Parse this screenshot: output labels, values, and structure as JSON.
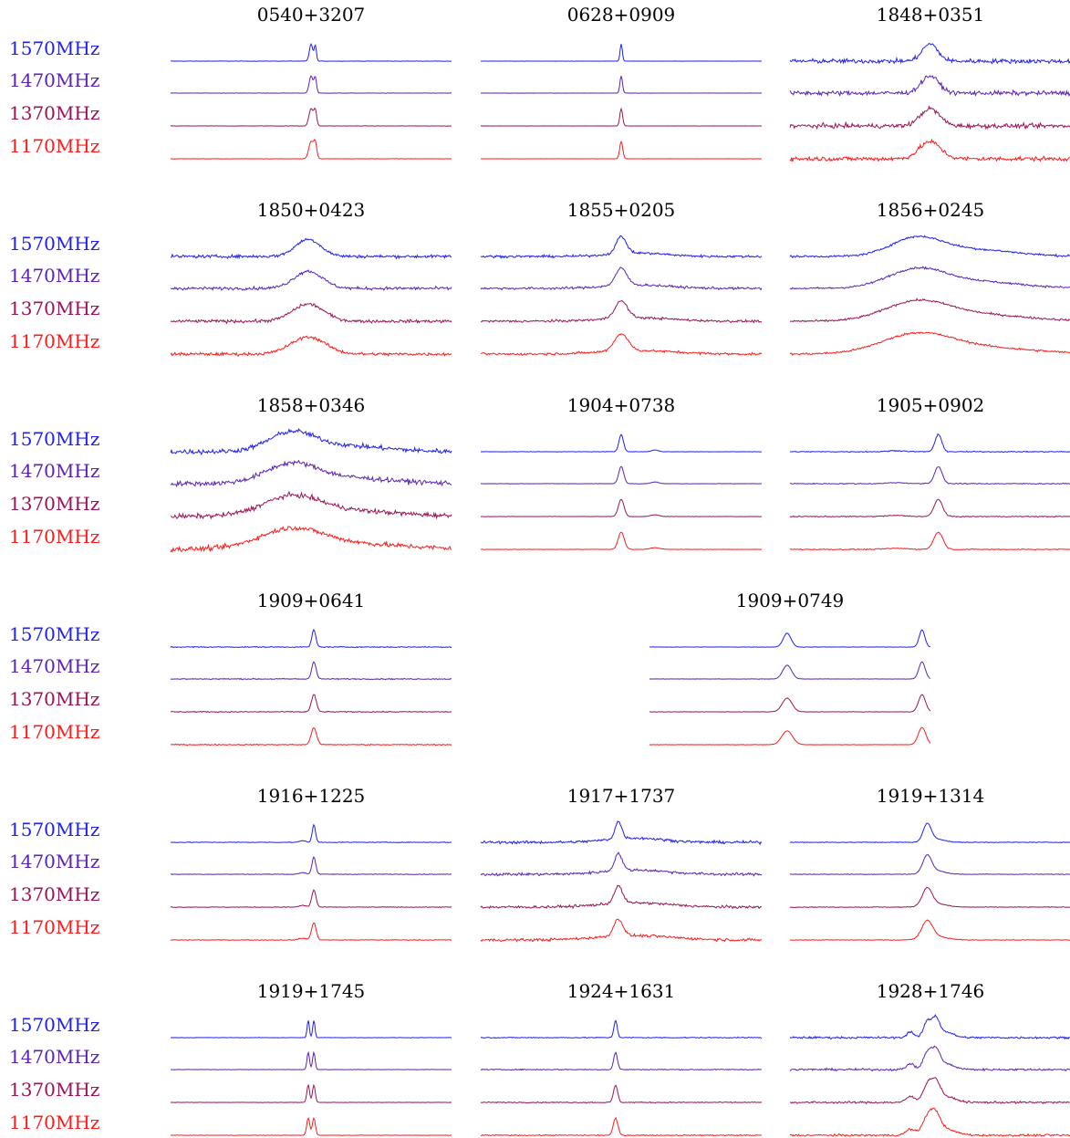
{
  "chart_data": {
    "type": "line",
    "description_units": "normalized pulse profile intensity vs pulse phase",
    "frequencies": [
      {
        "label": "1570MHz",
        "color": "#1f1ff0"
      },
      {
        "label": "1470MHz",
        "color": "#5a22b6"
      },
      {
        "label": "1370MHz",
        "color": "#9b1355"
      },
      {
        "label": "1170MHz",
        "color": "#ff1a1a"
      }
    ],
    "panels": [
      {
        "name": "0540+3207",
        "noise": 0.01,
        "components": [
          {
            "phase": 0.5,
            "width": 0.006,
            "amp": 1.0
          },
          {
            "phase": 0.515,
            "width": 0.004,
            "amp": 0.9
          }
        ]
      },
      {
        "name": "0628+0909",
        "noise": 0.005,
        "components": [
          {
            "phase": 0.5,
            "width": 0.004,
            "amp": 1.0
          }
        ]
      },
      {
        "name": "1848+0351",
        "noise": 0.13,
        "components": [
          {
            "phase": 0.5,
            "width": 0.028,
            "amp": 1.0
          }
        ]
      },
      {
        "name": "1850+0423",
        "noise": 0.09,
        "components": [
          {
            "phase": 0.49,
            "width": 0.045,
            "amp": 1.0
          }
        ]
      },
      {
        "name": "1855+0205",
        "noise": 0.07,
        "components": [
          {
            "phase": 0.5,
            "width": 0.018,
            "amp": 1.0
          },
          {
            "phase": 0.56,
            "width": 0.1,
            "amp": 0.2
          }
        ]
      },
      {
        "name": "1856+0245",
        "noise": 0.06,
        "components": [
          {
            "phase": 0.45,
            "width": 0.09,
            "amp": 1.0
          },
          {
            "phase": 0.65,
            "width": 0.15,
            "amp": 0.4
          }
        ]
      },
      {
        "name": "1858+0346",
        "noise": 0.14,
        "components": [
          {
            "phase": 0.43,
            "width": 0.08,
            "amp": 1.0
          },
          {
            "phase": 0.6,
            "width": 0.16,
            "amp": 0.35
          }
        ]
      },
      {
        "name": "1904+0738",
        "noise": 0.01,
        "components": [
          {
            "phase": 0.5,
            "width": 0.008,
            "amp": 1.0
          },
          {
            "phase": 0.62,
            "width": 0.012,
            "amp": 0.1
          }
        ]
      },
      {
        "name": "1905+0902",
        "noise": 0.03,
        "components": [
          {
            "phase": 0.53,
            "width": 0.012,
            "amp": 1.0
          },
          {
            "phase": 0.38,
            "width": 0.03,
            "amp": 0.06
          }
        ]
      },
      {
        "name": "1909+0641",
        "noise": 0.03,
        "components": [
          {
            "phase": 0.51,
            "width": 0.007,
            "amp": 1.0
          }
        ]
      },
      {
        "name": "1909+0749",
        "noise": 0.01,
        "components": [
          {
            "phase": 0.49,
            "width": 0.014,
            "amp": 0.8
          },
          {
            "phase": 0.97,
            "width": 0.01,
            "amp": 1.0
          }
        ]
      },
      {
        "name": "1916+1225",
        "noise": 0.02,
        "components": [
          {
            "phase": 0.51,
            "width": 0.006,
            "amp": 1.0
          },
          {
            "phase": 0.47,
            "width": 0.01,
            "amp": 0.1
          }
        ]
      },
      {
        "name": "1917+1737",
        "noise": 0.08,
        "components": [
          {
            "phase": 0.49,
            "width": 0.012,
            "amp": 1.0
          },
          {
            "phase": 0.55,
            "width": 0.1,
            "amp": 0.25
          }
        ]
      },
      {
        "name": "1919+1314",
        "noise": 0.02,
        "components": [
          {
            "phase": 0.49,
            "width": 0.014,
            "amp": 1.0
          },
          {
            "phase": 0.52,
            "width": 0.03,
            "amp": 0.2
          }
        ]
      },
      {
        "name": "1919+1745",
        "noise": 0.01,
        "components": [
          {
            "phase": 0.49,
            "width": 0.004,
            "amp": 1.0
          },
          {
            "phase": 0.51,
            "width": 0.004,
            "amp": 1.0
          }
        ]
      },
      {
        "name": "1924+1631",
        "noise": 0.03,
        "components": [
          {
            "phase": 0.48,
            "width": 0.006,
            "amp": 1.0
          }
        ]
      },
      {
        "name": "1928+1746",
        "noise": 0.06,
        "components": [
          {
            "phase": 0.43,
            "width": 0.012,
            "amp": 0.35
          },
          {
            "phase": 0.49,
            "width": 0.013,
            "amp": 0.9
          },
          {
            "phase": 0.52,
            "width": 0.013,
            "amp": 1.0
          },
          {
            "phase": 0.55,
            "width": 0.03,
            "amp": 0.35
          }
        ]
      }
    ]
  }
}
